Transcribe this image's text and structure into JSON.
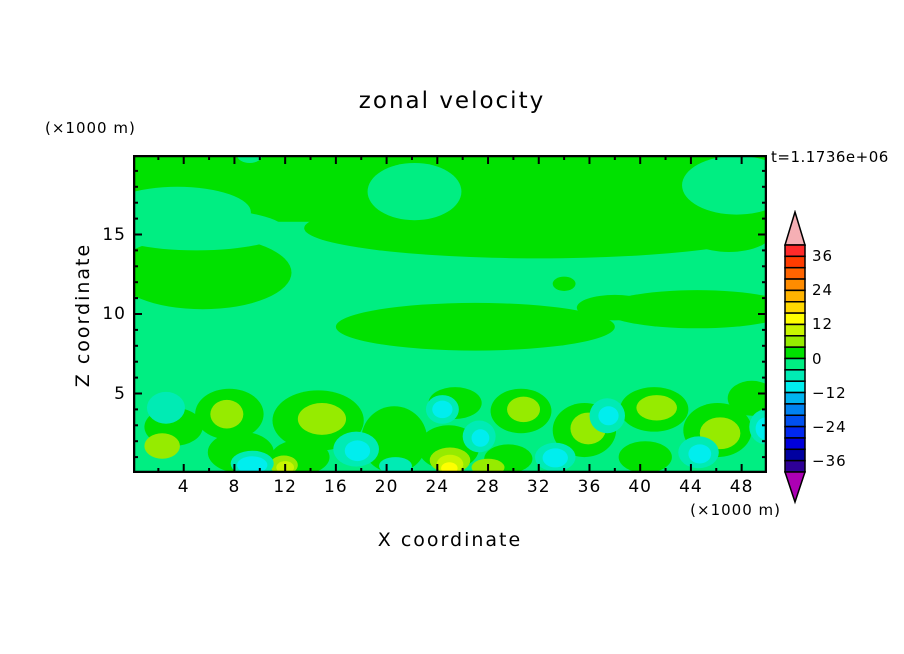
{
  "title": "zonal velocity",
  "annotation": "t=1.1736e+06",
  "axes": {
    "x_label": "X coordinate",
    "y_label": "Z coordinate",
    "x_units": "(×1000 m)",
    "y_units": "(×1000 m)"
  },
  "chart_data": {
    "type": "heatmap",
    "subtype": "filled-contour",
    "title": "zonal velocity",
    "xlabel": "X coordinate",
    "ylabel": "Z coordinate",
    "units_note": "axes in ×1000 m",
    "time_annotation": "t=1.1736e+06",
    "xlim": [
      0,
      50
    ],
    "ylim": [
      0,
      20
    ],
    "x_major_ticks": [
      4,
      8,
      12,
      16,
      20,
      24,
      28,
      32,
      36,
      40,
      44,
      48
    ],
    "x_minor_ticks": [
      2,
      6,
      10,
      14,
      18,
      22,
      26,
      30,
      34,
      38,
      42,
      46,
      50
    ],
    "y_major_ticks": [
      5,
      10,
      15
    ],
    "y_minor_ticks": [
      1,
      2,
      3,
      4,
      6,
      7,
      8,
      9,
      11,
      12,
      13,
      14,
      16,
      17,
      18,
      19
    ],
    "x_tick_labels": [
      "4",
      "8",
      "12",
      "16",
      "20",
      "24",
      "28",
      "32",
      "36",
      "40",
      "44",
      "48"
    ],
    "y_tick_labels": [
      "5",
      "10",
      "15"
    ],
    "contour_levels": [
      -40,
      -36,
      -32,
      -28,
      -24,
      -20,
      -16,
      -12,
      -8,
      -4,
      0,
      4,
      8,
      12,
      16,
      20,
      24,
      28,
      32,
      36,
      40
    ],
    "level_colors": [
      "#2E0096",
      "#0000A0",
      "#0000DC",
      "#0028F0",
      "#0050F0",
      "#0082F0",
      "#00B4F0",
      "#00EEEE",
      "#00EBB4",
      "#00EE82",
      "#00E100",
      "#96EB00",
      "#C8F500",
      "#FFFF00",
      "#FFD800",
      "#FFB400",
      "#FF8C00",
      "#FF6400",
      "#FF3C00",
      "#FF2A2A"
    ],
    "colorbar": {
      "orientation": "vertical",
      "label_values": [
        36,
        24,
        12,
        0,
        -12,
        -24,
        -36
      ],
      "labels": [
        "36",
        "24",
        "12",
        "0",
        "−12",
        "−24",
        "−36"
      ],
      "over_color": "#F5AFB4",
      "under_color": "#AC00B4",
      "cell_value_step": 4
    },
    "field_background_level": "-4..0",
    "field_regions_note": "approximate filled regions; c = color index into level_colors (low->high), e = ellipse [cx,cz,rx,rz] in data units, r = rect [x0,z0,x1,z1]",
    "field_regions": [
      {
        "c": 10,
        "r": [
          0,
          15.8,
          50,
          20
        ]
      },
      {
        "c": 10,
        "e": [
          5.5,
          12.6,
          7.0,
          2.3
        ]
      },
      {
        "c": 10,
        "e": [
          32,
          15.4,
          18.5,
          1.9
        ]
      },
      {
        "c": 10,
        "e": [
          27,
          9.2,
          11,
          1.5
        ]
      },
      {
        "c": 10,
        "e": [
          44.5,
          10.3,
          7.5,
          1.2
        ]
      },
      {
        "c": 10,
        "e": [
          38,
          10.4,
          3,
          0.8
        ]
      },
      {
        "c": 10,
        "e": [
          47,
          15.2,
          3.5,
          1.3
        ]
      },
      {
        "c": 10,
        "e": [
          34,
          11.9,
          0.9,
          0.45
        ]
      },
      {
        "c": 9,
        "e": [
          3.5,
          16.4,
          5.8,
          1.6
        ]
      },
      {
        "c": 9,
        "e": [
          5,
          15.3,
          7,
          1.3
        ]
      },
      {
        "c": 9,
        "e": [
          22.2,
          17.7,
          3.7,
          1.8
        ]
      },
      {
        "c": 9,
        "e": [
          47.6,
          18.1,
          4.3,
          1.85
        ]
      },
      {
        "c": 9,
        "e": [
          9.2,
          20,
          1.0,
          0.5
        ]
      },
      {
        "c": 10,
        "e": [
          3.2,
          2.9,
          2.3,
          1.2
        ]
      },
      {
        "c": 10,
        "e": [
          7.6,
          3.7,
          2.7,
          1.6
        ]
      },
      {
        "c": 10,
        "e": [
          8.5,
          1.3,
          2.6,
          1.3
        ]
      },
      {
        "c": 10,
        "e": [
          14.6,
          3.3,
          3.6,
          1.9
        ]
      },
      {
        "c": 10,
        "e": [
          13.2,
          1.0,
          2.3,
          1.1
        ]
      },
      {
        "c": 10,
        "e": [
          20.6,
          2.1,
          2.6,
          2.1
        ]
      },
      {
        "c": 10,
        "e": [
          25.4,
          4.4,
          2.1,
          1.0
        ]
      },
      {
        "c": 10,
        "e": [
          24.9,
          1.6,
          2.4,
          1.4
        ]
      },
      {
        "c": 10,
        "e": [
          30.6,
          3.9,
          2.4,
          1.4
        ]
      },
      {
        "c": 10,
        "e": [
          29.6,
          0.9,
          1.9,
          0.9
        ]
      },
      {
        "c": 10,
        "e": [
          35.6,
          2.7,
          2.5,
          1.7
        ]
      },
      {
        "c": 10,
        "e": [
          41.1,
          4.0,
          2.7,
          1.4
        ]
      },
      {
        "c": 10,
        "e": [
          40.4,
          1.0,
          2.1,
          1.0
        ]
      },
      {
        "c": 10,
        "e": [
          46.1,
          2.7,
          2.7,
          1.7
        ]
      },
      {
        "c": 10,
        "e": [
          48.8,
          4.7,
          1.9,
          1.1
        ]
      },
      {
        "c": 11,
        "e": [
          7.4,
          3.7,
          1.3,
          0.9
        ]
      },
      {
        "c": 11,
        "e": [
          14.9,
          3.4,
          1.9,
          1.0
        ]
      },
      {
        "c": 11,
        "e": [
          2.3,
          1.7,
          1.4,
          0.8
        ]
      },
      {
        "c": 11,
        "e": [
          25.0,
          0.8,
          1.6,
          0.8
        ]
      },
      {
        "c": 11,
        "e": [
          30.8,
          4.0,
          1.3,
          0.8
        ]
      },
      {
        "c": 11,
        "e": [
          35.9,
          2.8,
          1.4,
          1.0
        ]
      },
      {
        "c": 11,
        "e": [
          41.3,
          4.1,
          1.6,
          0.8
        ]
      },
      {
        "c": 11,
        "e": [
          46.3,
          2.5,
          1.6,
          1.0
        ]
      },
      {
        "c": 11,
        "e": [
          11.9,
          0.5,
          1.1,
          0.6
        ]
      },
      {
        "c": 11,
        "e": [
          28.0,
          0.35,
          1.3,
          0.55
        ]
      },
      {
        "c": 12,
        "e": [
          25.0,
          0.55,
          1.05,
          0.6
        ]
      },
      {
        "c": 12,
        "e": [
          12.0,
          0.35,
          0.7,
          0.4
        ]
      },
      {
        "c": 13,
        "e": [
          24.95,
          0.3,
          0.65,
          0.38
        ]
      },
      {
        "c": 8,
        "e": [
          2.6,
          4.1,
          1.5,
          1.0
        ]
      },
      {
        "c": 8,
        "e": [
          17.6,
          1.5,
          1.8,
          1.1
        ]
      },
      {
        "c": 8,
        "e": [
          27.3,
          2.3,
          1.3,
          1.0
        ]
      },
      {
        "c": 8,
        "e": [
          37.4,
          3.6,
          1.4,
          1.1
        ]
      },
      {
        "c": 8,
        "e": [
          44.6,
          1.3,
          1.6,
          1.0
        ]
      },
      {
        "c": 8,
        "e": [
          49.9,
          2.9,
          1.3,
          1.1
        ]
      },
      {
        "c": 8,
        "e": [
          24.4,
          4.0,
          1.3,
          0.9
        ]
      },
      {
        "c": 8,
        "e": [
          33.3,
          1.0,
          1.6,
          0.9
        ]
      },
      {
        "c": 8,
        "e": [
          9.4,
          0.6,
          1.7,
          0.8
        ]
      },
      {
        "c": 8,
        "e": [
          20.7,
          0.45,
          1.3,
          0.55
        ]
      },
      {
        "c": 7,
        "e": [
          9.4,
          0.5,
          1.2,
          0.55
        ]
      },
      {
        "c": 7,
        "e": [
          24.4,
          4.0,
          0.8,
          0.55
        ]
      },
      {
        "c": 7,
        "e": [
          33.3,
          0.95,
          1.0,
          0.6
        ]
      },
      {
        "c": 7,
        "e": [
          37.5,
          3.6,
          0.8,
          0.6
        ]
      },
      {
        "c": 7,
        "e": [
          49.9,
          2.8,
          0.8,
          0.7
        ]
      },
      {
        "c": 7,
        "e": [
          44.7,
          1.2,
          0.9,
          0.6
        ]
      },
      {
        "c": 7,
        "e": [
          17.7,
          1.4,
          1.0,
          0.65
        ]
      },
      {
        "c": 7,
        "e": [
          27.4,
          2.2,
          0.7,
          0.55
        ]
      }
    ]
  }
}
